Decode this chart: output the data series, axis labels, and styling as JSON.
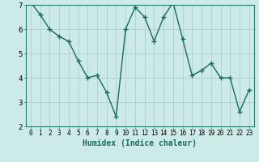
{
  "x": [
    0,
    1,
    2,
    3,
    4,
    5,
    6,
    7,
    8,
    9,
    10,
    11,
    12,
    13,
    14,
    15,
    16,
    17,
    18,
    19,
    20,
    21,
    22,
    23
  ],
  "y": [
    7.1,
    6.6,
    6.0,
    5.7,
    5.5,
    4.7,
    4.0,
    4.1,
    3.4,
    2.4,
    6.0,
    6.9,
    6.5,
    5.5,
    6.5,
    7.1,
    5.6,
    4.1,
    4.3,
    4.6,
    4.0,
    4.0,
    2.6,
    3.5
  ],
  "line_color": "#1a6b5a",
  "marker": "+",
  "marker_size": 4,
  "linewidth": 1.0,
  "xlabel": "Humidex (Indice chaleur)",
  "xlabel_fontsize": 7,
  "background_color": "#cceae7",
  "grid_color": "#b0cece",
  "xlim": [
    -0.5,
    23.5
  ],
  "ylim": [
    2,
    7
  ],
  "yticks": [
    2,
    3,
    4,
    5,
    6,
    7
  ],
  "xtick_labels": [
    "0",
    "1",
    "2",
    "3",
    "4",
    "5",
    "6",
    "7",
    "8",
    "9",
    "10",
    "11",
    "12",
    "13",
    "14",
    "15",
    "16",
    "17",
    "18",
    "19",
    "20",
    "21",
    "22",
    "23"
  ],
  "tick_fontsize": 5.5,
  "ytick_fontsize": 6.5,
  "spine_color": "#2a7a6a"
}
